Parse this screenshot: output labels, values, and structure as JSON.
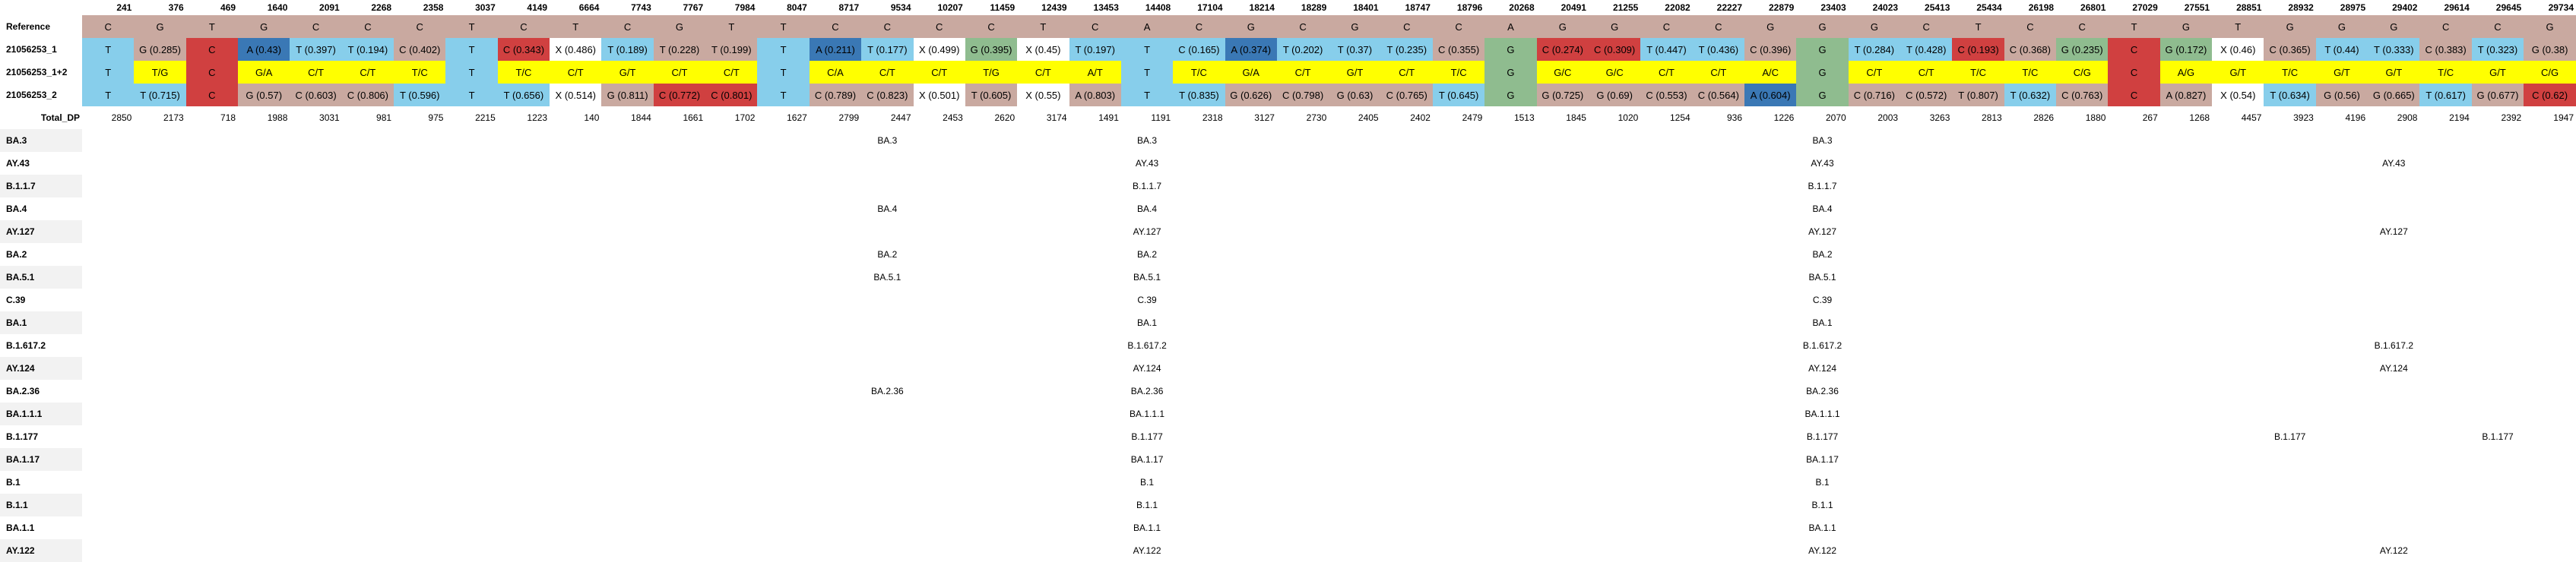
{
  "colors": {
    "T": "#87ceeb",
    "C": "#c9a9a0",
    "A": "#3a78b5",
    "G": "#8fbc8f",
    "X": "#ffffff",
    "red": "#d04040",
    "mix": "#ffff00"
  },
  "positions": [
    "241",
    "376",
    "469",
    "1640",
    "2091",
    "2268",
    "2358",
    "3037",
    "4149",
    "6664",
    "7743",
    "7767",
    "7984",
    "8047",
    "8717",
    "9534",
    "10207",
    "11459",
    "12439",
    "13453",
    "14408",
    "17104",
    "18214",
    "18289",
    "18401",
    "18747",
    "18796",
    "20268",
    "20491",
    "21255",
    "22082",
    "22227",
    "22879",
    "23403",
    "24023",
    "25413",
    "25434",
    "26198",
    "26801",
    "27029",
    "27551",
    "28851",
    "28932",
    "28975",
    "29402",
    "29614",
    "29645",
    "29734"
  ],
  "reference": {
    "label": "Reference",
    "cells": [
      "C",
      "G",
      "T",
      "G",
      "C",
      "C",
      "C",
      "T",
      "C",
      "T",
      "C",
      "G",
      "T",
      "T",
      "C",
      "C",
      "C",
      "C",
      "T",
      "C",
      "A",
      "C",
      "G",
      "C",
      "G",
      "C",
      "C",
      "A",
      "G",
      "G",
      "C",
      "C",
      "G",
      "G",
      "G",
      "C",
      "T",
      "C",
      "C",
      "T",
      "G",
      "T",
      "G",
      "G",
      "G",
      "C",
      "C",
      "G"
    ]
  },
  "samples": [
    {
      "label": "21056253_1",
      "cells": [
        {
          "t": "T",
          "c": "T"
        },
        {
          "t": "G (0.285)",
          "c": "C"
        },
        {
          "t": "C",
          "c": "red"
        },
        {
          "t": "A (0.43)",
          "c": "A"
        },
        {
          "t": "T (0.397)",
          "c": "T"
        },
        {
          "t": "T (0.194)",
          "c": "T"
        },
        {
          "t": "C (0.402)",
          "c": "C"
        },
        {
          "t": "T",
          "c": "T"
        },
        {
          "t": "C (0.343)",
          "c": "red"
        },
        {
          "t": "X (0.486)",
          "c": "X"
        },
        {
          "t": "T (0.189)",
          "c": "T"
        },
        {
          "t": "T (0.228)",
          "c": "C"
        },
        {
          "t": "T (0.199)",
          "c": "C"
        },
        {
          "t": "T",
          "c": "T"
        },
        {
          "t": "A (0.211)",
          "c": "A"
        },
        {
          "t": "T (0.177)",
          "c": "T"
        },
        {
          "t": "X (0.499)",
          "c": "X"
        },
        {
          "t": "G (0.395)",
          "c": "G"
        },
        {
          "t": "X (0.45)",
          "c": "X"
        },
        {
          "t": "T (0.197)",
          "c": "T"
        },
        {
          "t": "T",
          "c": "T"
        },
        {
          "t": "C (0.165)",
          "c": "T"
        },
        {
          "t": "A (0.374)",
          "c": "A"
        },
        {
          "t": "T (0.202)",
          "c": "T"
        },
        {
          "t": "T (0.37)",
          "c": "T"
        },
        {
          "t": "T (0.235)",
          "c": "T"
        },
        {
          "t": "C (0.355)",
          "c": "C"
        },
        {
          "t": "G",
          "c": "G"
        },
        {
          "t": "C (0.274)",
          "c": "red"
        },
        {
          "t": "C (0.309)",
          "c": "red"
        },
        {
          "t": "T (0.447)",
          "c": "T"
        },
        {
          "t": "T (0.436)",
          "c": "T"
        },
        {
          "t": "C (0.396)",
          "c": "C"
        },
        {
          "t": "G",
          "c": "G"
        },
        {
          "t": "T (0.284)",
          "c": "T"
        },
        {
          "t": "T (0.428)",
          "c": "T"
        },
        {
          "t": "C (0.193)",
          "c": "red"
        },
        {
          "t": "C (0.368)",
          "c": "C"
        },
        {
          "t": "G (0.235)",
          "c": "G"
        },
        {
          "t": "C",
          "c": "red"
        },
        {
          "t": "G (0.172)",
          "c": "G"
        },
        {
          "t": "X (0.46)",
          "c": "X"
        },
        {
          "t": "C (0.365)",
          "c": "C"
        },
        {
          "t": "T (0.44)",
          "c": "T"
        },
        {
          "t": "T (0.333)",
          "c": "T"
        },
        {
          "t": "C (0.383)",
          "c": "C"
        },
        {
          "t": "T (0.323)",
          "c": "T"
        },
        {
          "t": "G (0.38)",
          "c": "C"
        }
      ]
    },
    {
      "label": "21056253_1+2",
      "cells": [
        {
          "t": "T",
          "c": "T"
        },
        {
          "t": "T/G",
          "c": "mix"
        },
        {
          "t": "C",
          "c": "red"
        },
        {
          "t": "G/A",
          "c": "mix"
        },
        {
          "t": "C/T",
          "c": "mix"
        },
        {
          "t": "C/T",
          "c": "mix"
        },
        {
          "t": "T/C",
          "c": "mix"
        },
        {
          "t": "T",
          "c": "T"
        },
        {
          "t": "T/C",
          "c": "mix"
        },
        {
          "t": "C/T",
          "c": "mix"
        },
        {
          "t": "G/T",
          "c": "mix"
        },
        {
          "t": "C/T",
          "c": "mix"
        },
        {
          "t": "C/T",
          "c": "mix"
        },
        {
          "t": "T",
          "c": "T"
        },
        {
          "t": "C/A",
          "c": "mix"
        },
        {
          "t": "C/T",
          "c": "mix"
        },
        {
          "t": "C/T",
          "c": "mix"
        },
        {
          "t": "T/G",
          "c": "mix"
        },
        {
          "t": "C/T",
          "c": "mix"
        },
        {
          "t": "A/T",
          "c": "mix"
        },
        {
          "t": "T",
          "c": "T"
        },
        {
          "t": "T/C",
          "c": "mix"
        },
        {
          "t": "G/A",
          "c": "mix"
        },
        {
          "t": "C/T",
          "c": "mix"
        },
        {
          "t": "G/T",
          "c": "mix"
        },
        {
          "t": "C/T",
          "c": "mix"
        },
        {
          "t": "T/C",
          "c": "mix"
        },
        {
          "t": "G",
          "c": "G"
        },
        {
          "t": "G/C",
          "c": "mix"
        },
        {
          "t": "G/C",
          "c": "mix"
        },
        {
          "t": "C/T",
          "c": "mix"
        },
        {
          "t": "C/T",
          "c": "mix"
        },
        {
          "t": "A/C",
          "c": "mix"
        },
        {
          "t": "G",
          "c": "G"
        },
        {
          "t": "C/T",
          "c": "mix"
        },
        {
          "t": "C/T",
          "c": "mix"
        },
        {
          "t": "T/C",
          "c": "mix"
        },
        {
          "t": "T/C",
          "c": "mix"
        },
        {
          "t": "C/G",
          "c": "mix"
        },
        {
          "t": "C",
          "c": "red"
        },
        {
          "t": "A/G",
          "c": "mix"
        },
        {
          "t": "G/T",
          "c": "mix"
        },
        {
          "t": "T/C",
          "c": "mix"
        },
        {
          "t": "G/T",
          "c": "mix"
        },
        {
          "t": "G/T",
          "c": "mix"
        },
        {
          "t": "T/C",
          "c": "mix"
        },
        {
          "t": "G/T",
          "c": "mix"
        },
        {
          "t": "C/G",
          "c": "mix"
        }
      ]
    },
    {
      "label": "21056253_2",
      "cells": [
        {
          "t": "T",
          "c": "T"
        },
        {
          "t": "T (0.715)",
          "c": "T"
        },
        {
          "t": "C",
          "c": "red"
        },
        {
          "t": "G (0.57)",
          "c": "C"
        },
        {
          "t": "C (0.603)",
          "c": "C"
        },
        {
          "t": "C (0.806)",
          "c": "C"
        },
        {
          "t": "T (0.596)",
          "c": "T"
        },
        {
          "t": "T",
          "c": "T"
        },
        {
          "t": "T (0.656)",
          "c": "T"
        },
        {
          "t": "X (0.514)",
          "c": "X"
        },
        {
          "t": "G (0.811)",
          "c": "C"
        },
        {
          "t": "C (0.772)",
          "c": "red"
        },
        {
          "t": "C (0.801)",
          "c": "red"
        },
        {
          "t": "T",
          "c": "T"
        },
        {
          "t": "C (0.789)",
          "c": "C"
        },
        {
          "t": "C (0.823)",
          "c": "C"
        },
        {
          "t": "X (0.501)",
          "c": "X"
        },
        {
          "t": "T (0.605)",
          "c": "C"
        },
        {
          "t": "X (0.55)",
          "c": "X"
        },
        {
          "t": "A (0.803)",
          "c": "C"
        },
        {
          "t": "T",
          "c": "T"
        },
        {
          "t": "T (0.835)",
          "c": "T"
        },
        {
          "t": "G (0.626)",
          "c": "C"
        },
        {
          "t": "C (0.798)",
          "c": "C"
        },
        {
          "t": "G (0.63)",
          "c": "C"
        },
        {
          "t": "C (0.765)",
          "c": "C"
        },
        {
          "t": "T (0.645)",
          "c": "T"
        },
        {
          "t": "G",
          "c": "G"
        },
        {
          "t": "G (0.725)",
          "c": "C"
        },
        {
          "t": "G (0.69)",
          "c": "C"
        },
        {
          "t": "C (0.553)",
          "c": "C"
        },
        {
          "t": "C (0.564)",
          "c": "C"
        },
        {
          "t": "A (0.604)",
          "c": "A"
        },
        {
          "t": "G",
          "c": "G"
        },
        {
          "t": "C (0.716)",
          "c": "C"
        },
        {
          "t": "C (0.572)",
          "c": "C"
        },
        {
          "t": "T (0.807)",
          "c": "C"
        },
        {
          "t": "T (0.632)",
          "c": "T"
        },
        {
          "t": "C (0.763)",
          "c": "C"
        },
        {
          "t": "C",
          "c": "red"
        },
        {
          "t": "A (0.827)",
          "c": "C"
        },
        {
          "t": "X (0.54)",
          "c": "X"
        },
        {
          "t": "T (0.634)",
          "c": "T"
        },
        {
          "t": "G (0.56)",
          "c": "C"
        },
        {
          "t": "G (0.665)",
          "c": "C"
        },
        {
          "t": "T (0.617)",
          "c": "T"
        },
        {
          "t": "G (0.677)",
          "c": "C"
        },
        {
          "t": "C (0.62)",
          "c": "red"
        }
      ]
    }
  ],
  "total_dp": {
    "label": "Total_DP",
    "values": [
      "2850",
      "2173",
      "718",
      "1988",
      "3031",
      "981",
      "975",
      "2215",
      "1223",
      "140",
      "1844",
      "1661",
      "1702",
      "1627",
      "2799",
      "2447",
      "2453",
      "2620",
      "3174",
      "1491",
      "1191",
      "2318",
      "3127",
      "2730",
      "2405",
      "2402",
      "2479",
      "1513",
      "1845",
      "1020",
      "1254",
      "936",
      "1226",
      "2070",
      "2003",
      "3263",
      "2813",
      "2826",
      "1880",
      "267",
      "1268",
      "4457",
      "3923",
      "4196",
      "2908",
      "2194",
      "2392",
      "1947"
    ]
  },
  "lineages": [
    {
      "label": "BA.3",
      "cols": {
        "15": "BA.3",
        "20": "BA.3",
        "33": "BA.3"
      }
    },
    {
      "label": "AY.43",
      "cols": {
        "20": "AY.43",
        "33": "AY.43",
        "44": "AY.43"
      }
    },
    {
      "label": "B.1.1.7",
      "cols": {
        "20": "B.1.1.7",
        "33": "B.1.1.7"
      }
    },
    {
      "label": "BA.4",
      "cols": {
        "15": "BA.4",
        "20": "BA.4",
        "33": "BA.4"
      }
    },
    {
      "label": "AY.127",
      "cols": {
        "20": "AY.127",
        "33": "AY.127",
        "44": "AY.127"
      }
    },
    {
      "label": "BA.2",
      "cols": {
        "15": "BA.2",
        "20": "BA.2",
        "33": "BA.2"
      }
    },
    {
      "label": "BA.5.1",
      "cols": {
        "15": "BA.5.1",
        "20": "BA.5.1",
        "33": "BA.5.1"
      }
    },
    {
      "label": "C.39",
      "cols": {
        "20": "C.39",
        "33": "C.39"
      }
    },
    {
      "label": "BA.1",
      "cols": {
        "20": "BA.1",
        "33": "BA.1"
      }
    },
    {
      "label": "B.1.617.2",
      "cols": {
        "20": "B.1.617.2",
        "33": "B.1.617.2",
        "44": "B.1.617.2"
      }
    },
    {
      "label": "AY.124",
      "cols": {
        "20": "AY.124",
        "33": "AY.124",
        "44": "AY.124"
      }
    },
    {
      "label": "BA.2.36",
      "cols": {
        "15": "BA.2.36",
        "20": "BA.2.36",
        "33": "BA.2.36"
      }
    },
    {
      "label": "BA.1.1.1",
      "cols": {
        "20": "BA.1.1.1",
        "33": "BA.1.1.1"
      }
    },
    {
      "label": "B.1.177",
      "cols": {
        "20": "B.1.177",
        "33": "B.1.177",
        "42": "B.1.177",
        "46": "B.1.177"
      }
    },
    {
      "label": "BA.1.17",
      "cols": {
        "20": "BA.1.17",
        "33": "BA.1.17"
      }
    },
    {
      "label": "B.1",
      "cols": {
        "20": "B.1",
        "33": "B.1"
      }
    },
    {
      "label": "B.1.1",
      "cols": {
        "20": "B.1.1",
        "33": "B.1.1"
      }
    },
    {
      "label": "BA.1.1",
      "cols": {
        "20": "BA.1.1",
        "33": "BA.1.1"
      }
    },
    {
      "label": "AY.122",
      "cols": {
        "20": "AY.122",
        "33": "AY.122",
        "44": "AY.122"
      }
    }
  ]
}
